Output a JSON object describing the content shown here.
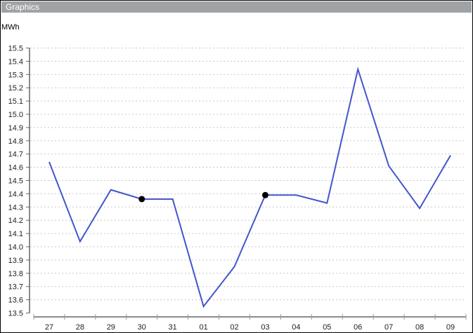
{
  "window": {
    "title": "Graphics"
  },
  "chart_data": {
    "type": "line",
    "title": "",
    "xlabel": "",
    "ylabel": "MWh",
    "categories": [
      "27",
      "28",
      "29",
      "30",
      "31",
      "01",
      "02",
      "03",
      "04",
      "05",
      "06",
      "07",
      "08",
      "09"
    ],
    "values": [
      14.64,
      14.04,
      14.43,
      14.36,
      14.36,
      13.55,
      13.85,
      14.39,
      14.39,
      14.33,
      15.34,
      14.61,
      14.29,
      14.69
    ],
    "markers": [
      "30",
      "03"
    ],
    "ylim": [
      13.5,
      15.5
    ],
    "ytick_step": 0.1,
    "grid": "horizontal dotted",
    "line_color": "#4455cc",
    "marker_color": "#000000"
  }
}
